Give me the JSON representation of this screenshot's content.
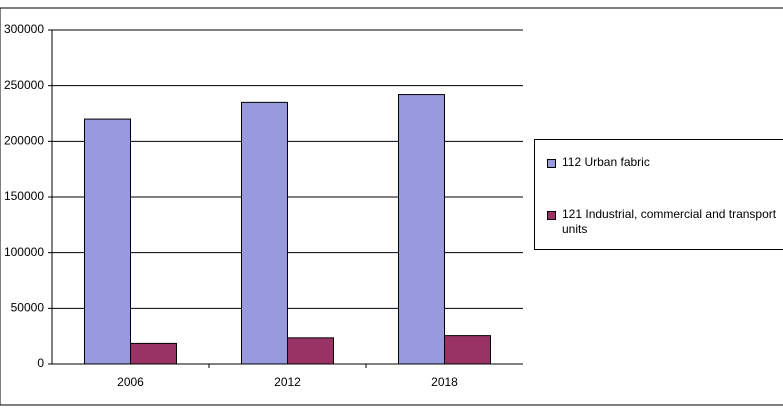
{
  "chart_data": {
    "type": "bar",
    "categories": [
      "2006",
      "2012",
      "2018"
    ],
    "series": [
      {
        "name": "112 Urban fabric",
        "color": "#9999dd",
        "values": [
          220000,
          235000,
          242000
        ]
      },
      {
        "name": "121 Industrial, commercial and transport units",
        "color": "#993366",
        "values": [
          18500,
          23500,
          25500
        ]
      }
    ],
    "ylim": [
      0,
      300000
    ],
    "yticks": [
      0,
      50000,
      100000,
      150000,
      200000,
      250000,
      300000
    ],
    "grid": true
  }
}
